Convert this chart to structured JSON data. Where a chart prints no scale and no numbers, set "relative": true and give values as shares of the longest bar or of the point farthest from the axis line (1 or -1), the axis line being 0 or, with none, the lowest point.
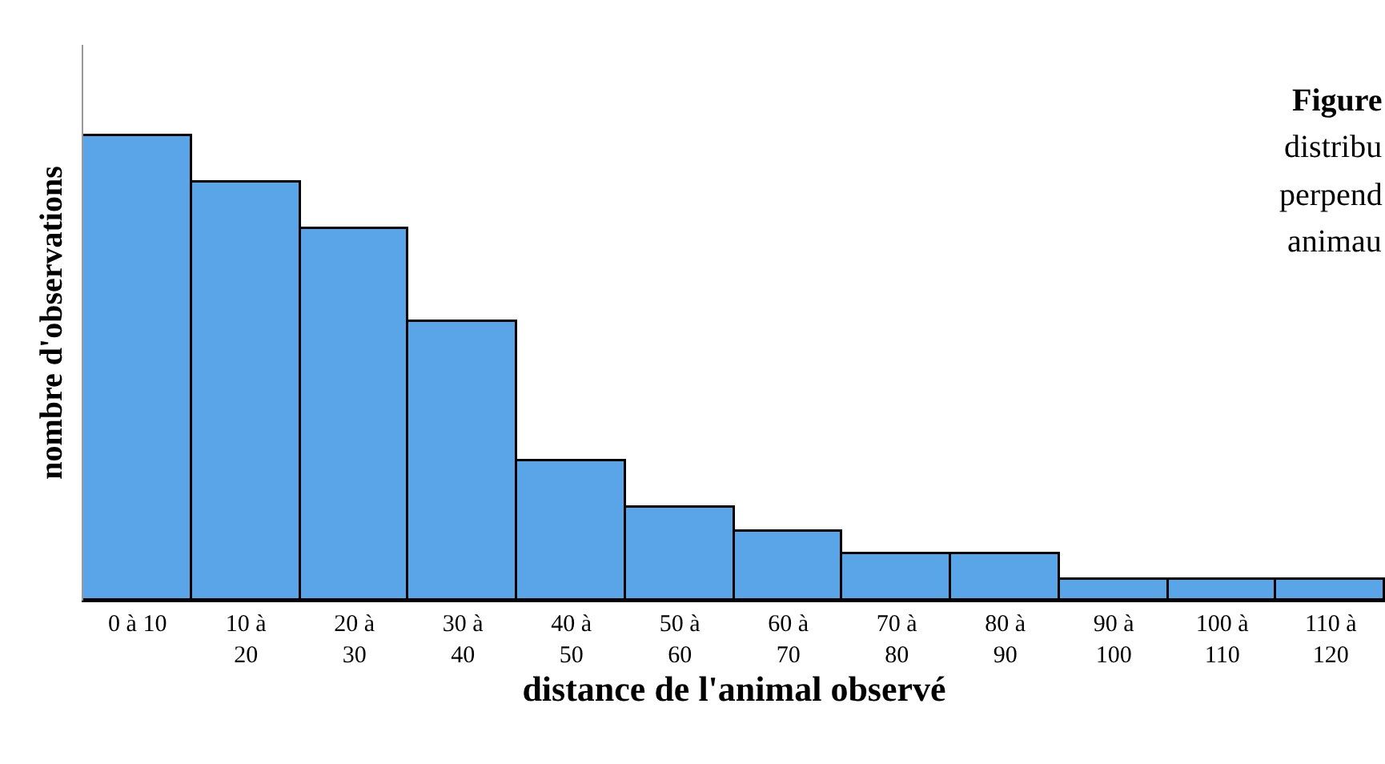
{
  "chart_data": {
    "type": "bar",
    "relative": true,
    "xlabel": "distance de l'animal observé",
    "ylabel": "nombre d'observations",
    "categories": [
      "0 à 10",
      "10 à\n20",
      "20 à\n30",
      "30 à\n40",
      "40 à\n50",
      "50 à\n60",
      "60 à\n70",
      "70 à\n80",
      "80 à\n90",
      "90 à\n100",
      "100 à\n110",
      "110 à\n120"
    ],
    "values": [
      1,
      0.9,
      0.8,
      0.6,
      0.3,
      0.2,
      0.15,
      0.1,
      0.1,
      0.045,
      0.045,
      0.045
    ],
    "color": "#5aa5e8",
    "annotations": [
      "Figure",
      "distribu",
      "perpend",
      "animau"
    ]
  }
}
